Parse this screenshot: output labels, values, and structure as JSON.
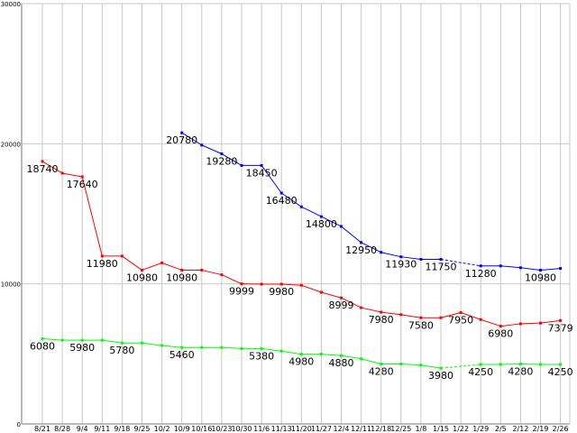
{
  "chart_data": {
    "type": "line",
    "title": "",
    "xlabel": "",
    "ylabel": "",
    "ylim": [
      0,
      30000
    ],
    "y_ticks": [
      "0",
      "10000",
      "20000",
      "30000"
    ],
    "grid": true,
    "categories": [
      "8/21",
      "8/28",
      "9/4",
      "9/11",
      "9/18",
      "9/25",
      "10/2",
      "10/9",
      "10/16",
      "10/23",
      "10/30",
      "11/6",
      "11/13",
      "11/20",
      "11/27",
      "12/4",
      "12/11",
      "12/18",
      "12/25",
      "1/8",
      "1/15",
      "1/22",
      "1/29",
      "2/5",
      "2/12",
      "2/19",
      "2/26"
    ],
    "series": [
      {
        "color": "#0000ff",
        "values": [
          null,
          null,
          null,
          null,
          null,
          null,
          null,
          20780,
          19900,
          19280,
          18450,
          18450,
          16480,
          15500,
          14800,
          14100,
          12950,
          12250,
          11930,
          11750,
          11750,
          null,
          11280,
          11280,
          11150,
          10980,
          11100
        ],
        "dashed_gaps": [
          [
            20,
            22
          ]
        ]
      },
      {
        "color": "#ff0000",
        "values": [
          18740,
          17900,
          17640,
          11980,
          11980,
          10980,
          11500,
          10980,
          10980,
          10650,
          9999,
          9980,
          9980,
          9900,
          9400,
          8999,
          8300,
          7980,
          7800,
          7580,
          7580,
          7950,
          7450,
          6980,
          7150,
          7200,
          7379
        ],
        "dashed_gaps": []
      },
      {
        "color": "#00ff00",
        "values": [
          6080,
          5980,
          5980,
          5980,
          5780,
          5780,
          5600,
          5460,
          5460,
          5460,
          5380,
          5380,
          5200,
          4980,
          4980,
          4880,
          4650,
          4280,
          4280,
          4200,
          3980,
          null,
          4250,
          4250,
          4280,
          4250,
          4250
        ],
        "dashed_gaps": [
          [
            20,
            22
          ]
        ]
      }
    ],
    "data_labels": [
      {
        "series": 1,
        "index": 0,
        "text": "18740"
      },
      {
        "series": 1,
        "index": 2,
        "text": "17640"
      },
      {
        "series": 1,
        "index": 3,
        "text": "11980"
      },
      {
        "series": 1,
        "index": 5,
        "text": "10980"
      },
      {
        "series": 1,
        "index": 7,
        "text": "10980"
      },
      {
        "series": 1,
        "index": 10,
        "text": "9999"
      },
      {
        "series": 1,
        "index": 12,
        "text": "9980"
      },
      {
        "series": 1,
        "index": 15,
        "text": "8999"
      },
      {
        "series": 1,
        "index": 17,
        "text": "7980"
      },
      {
        "series": 1,
        "index": 19,
        "text": "7580"
      },
      {
        "series": 1,
        "index": 21,
        "text": "7950"
      },
      {
        "series": 1,
        "index": 23,
        "text": "6980"
      },
      {
        "series": 1,
        "index": 26,
        "text": "7379"
      },
      {
        "series": 0,
        "index": 7,
        "text": "20780"
      },
      {
        "series": 0,
        "index": 9,
        "text": "19280"
      },
      {
        "series": 0,
        "index": 11,
        "text": "18450"
      },
      {
        "series": 0,
        "index": 12,
        "text": "16480"
      },
      {
        "series": 0,
        "index": 14,
        "text": "14800"
      },
      {
        "series": 0,
        "index": 16,
        "text": "12950"
      },
      {
        "series": 0,
        "index": 18,
        "text": "11930"
      },
      {
        "series": 0,
        "index": 20,
        "text": "11750"
      },
      {
        "series": 0,
        "index": 22,
        "text": "11280"
      },
      {
        "series": 0,
        "index": 25,
        "text": "10980"
      },
      {
        "series": 2,
        "index": 0,
        "text": "6080"
      },
      {
        "series": 2,
        "index": 2,
        "text": "5980"
      },
      {
        "series": 2,
        "index": 4,
        "text": "5780"
      },
      {
        "series": 2,
        "index": 7,
        "text": "5460"
      },
      {
        "series": 2,
        "index": 11,
        "text": "5380"
      },
      {
        "series": 2,
        "index": 13,
        "text": "4980"
      },
      {
        "series": 2,
        "index": 15,
        "text": "4880"
      },
      {
        "series": 2,
        "index": 17,
        "text": "4280"
      },
      {
        "series": 2,
        "index": 20,
        "text": "3980"
      },
      {
        "series": 2,
        "index": 22,
        "text": "4250"
      },
      {
        "series": 2,
        "index": 24,
        "text": "4280"
      },
      {
        "series": 2,
        "index": 26,
        "text": "4250"
      }
    ]
  }
}
